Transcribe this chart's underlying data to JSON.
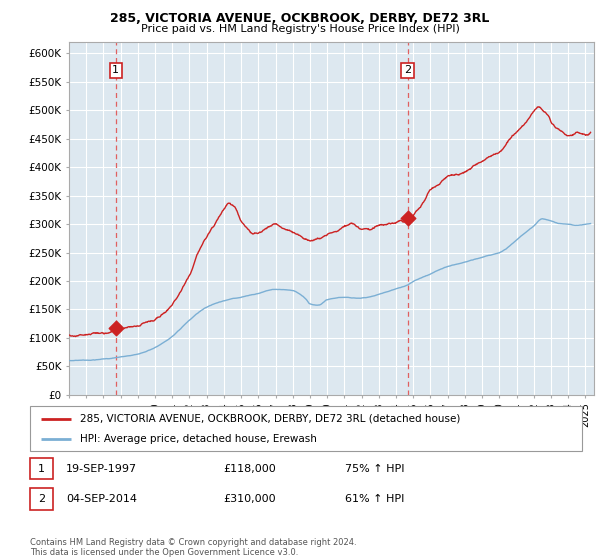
{
  "title1": "285, VICTORIA AVENUE, OCKBROOK, DERBY, DE72 3RL",
  "title2": "Price paid vs. HM Land Registry's House Price Index (HPI)",
  "ylabel_ticks": [
    "£0",
    "£50K",
    "£100K",
    "£150K",
    "£200K",
    "£250K",
    "£300K",
    "£350K",
    "£400K",
    "£450K",
    "£500K",
    "£550K",
    "£600K"
  ],
  "ylabel_values": [
    0,
    50000,
    100000,
    150000,
    200000,
    250000,
    300000,
    350000,
    400000,
    450000,
    500000,
    550000,
    600000
  ],
  "sale1_date": 1997.72,
  "sale1_price": 118000,
  "sale1_label": "1",
  "sale2_date": 2014.67,
  "sale2_price": 310000,
  "sale2_label": "2",
  "legend_line1": "285, VICTORIA AVENUE, OCKBROOK, DERBY, DE72 3RL (detached house)",
  "legend_line2": "HPI: Average price, detached house, Erewash",
  "note1_num": "1",
  "note1_date": "19-SEP-1997",
  "note1_price": "£118,000",
  "note1_hpi": "75% ↑ HPI",
  "note2_num": "2",
  "note2_date": "04-SEP-2014",
  "note2_price": "£310,000",
  "note2_hpi": "61% ↑ HPI",
  "copyright": "Contains HM Land Registry data © Crown copyright and database right 2024.\nThis data is licensed under the Open Government Licence v3.0.",
  "hpi_color": "#7bafd4",
  "price_color": "#cc2222",
  "dashed_color": "#e06060",
  "bg_color": "#ffffff",
  "chart_bg": "#dde8f0",
  "grid_color": "#ffffff",
  "xmin": 1995.0,
  "xmax": 2025.5,
  "ymin": 0,
  "ymax": 620000
}
